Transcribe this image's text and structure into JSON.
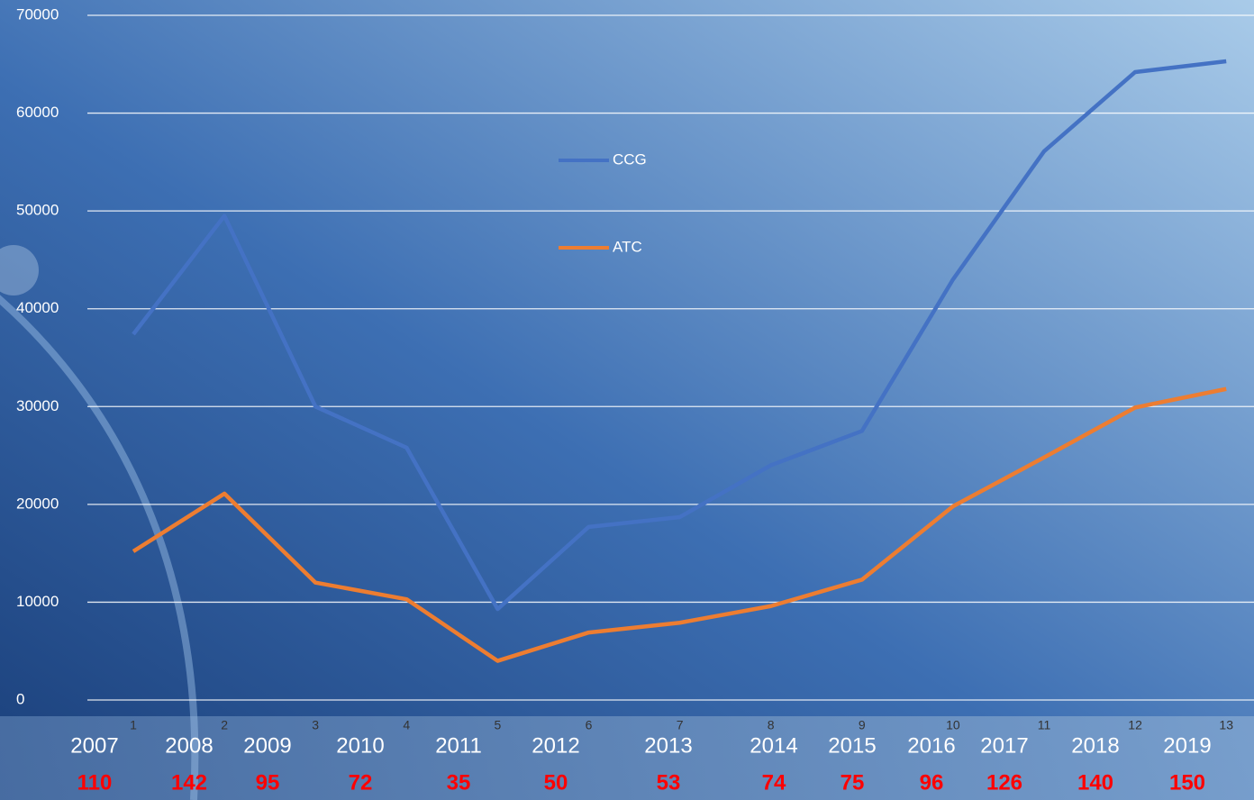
{
  "chart_data": {
    "type": "line",
    "categories": [
      "1",
      "2",
      "3",
      "4",
      "5",
      "6",
      "7",
      "8",
      "9",
      "10",
      "11",
      "12",
      "13"
    ],
    "series": [
      {
        "name": "CCG",
        "color": "#4472c4",
        "values": [
          37400,
          49500,
          30000,
          25800,
          9300,
          17700,
          18700,
          24000,
          27500,
          43000,
          56100,
          64200,
          65300
        ]
      },
      {
        "name": "ATC",
        "color": "#ed7d31",
        "values": [
          15200,
          21100,
          12000,
          10300,
          4000,
          6900,
          7900,
          9600,
          12300,
          19800,
          24800,
          29900,
          31800
        ]
      }
    ],
    "ylim": [
      0,
      70000
    ],
    "yticks": [
      0,
      10000,
      20000,
      30000,
      40000,
      50000,
      60000,
      70000
    ],
    "grid": true,
    "legend": "top-center",
    "years": [
      "2007",
      "2008",
      "2009",
      "2010",
      "2011",
      "2012",
      "2013",
      "2014",
      "2015",
      "2016",
      "2017",
      "2018",
      "2019"
    ],
    "counts": [
      110,
      142,
      95,
      72,
      35,
      50,
      53,
      74,
      75,
      96,
      126,
      140,
      150
    ],
    "counts_color": "#ff0000"
  }
}
